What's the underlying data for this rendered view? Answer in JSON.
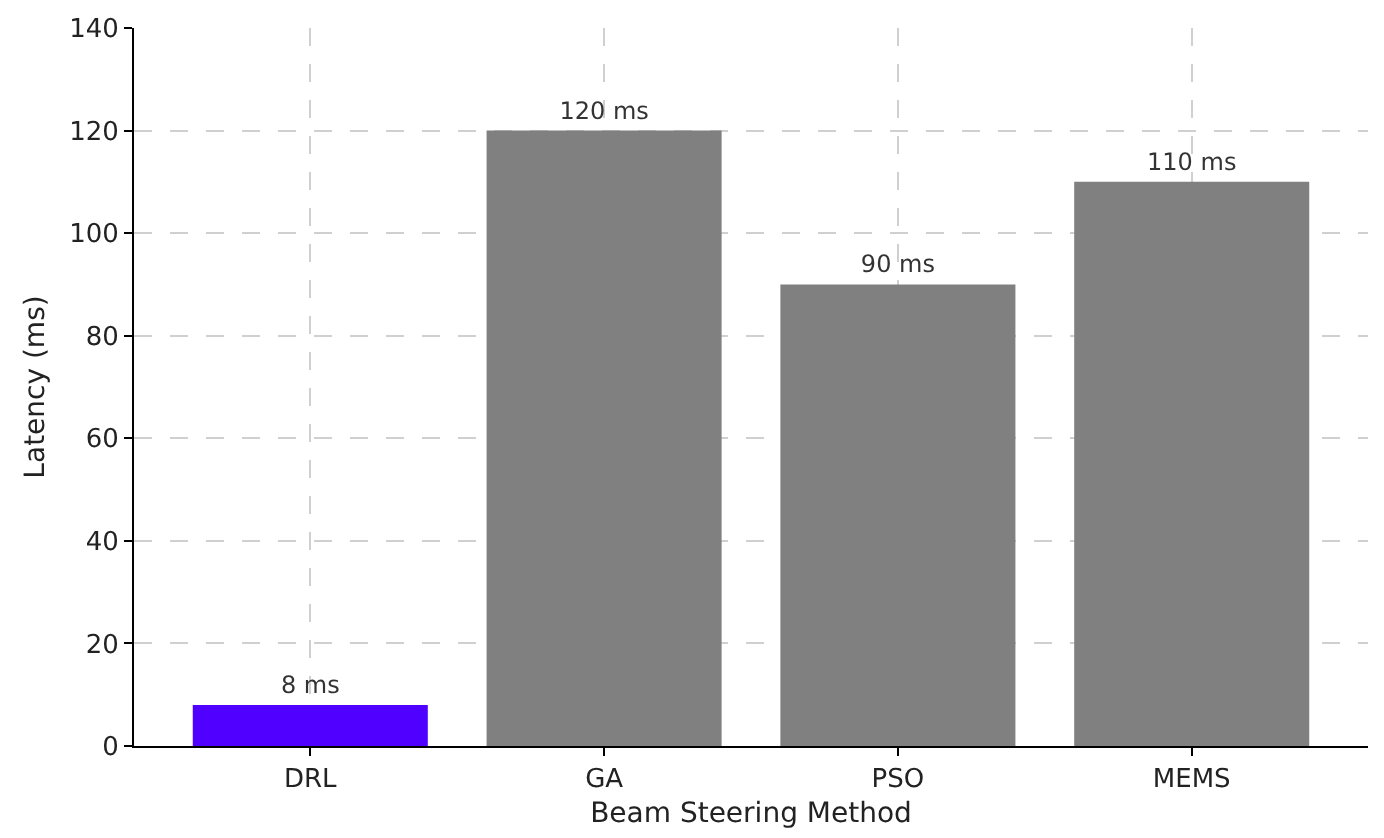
{
  "chart_data": {
    "type": "bar",
    "xlabel": "Beam Steering Method",
    "ylabel": "Latency (ms)",
    "categories": [
      "DRL",
      "GA",
      "PSO",
      "MEMS"
    ],
    "values": [
      8,
      120,
      90,
      110
    ],
    "colors": [
      "#5000ff",
      "#808080",
      "#808080",
      "#808080"
    ],
    "value_labels": [
      "8 ms",
      "120 ms",
      "90 ms",
      "110 ms"
    ],
    "ylim": [
      0,
      140
    ],
    "yticks": [
      0,
      20,
      40,
      60,
      80,
      100,
      120,
      140
    ],
    "grid": true
  }
}
